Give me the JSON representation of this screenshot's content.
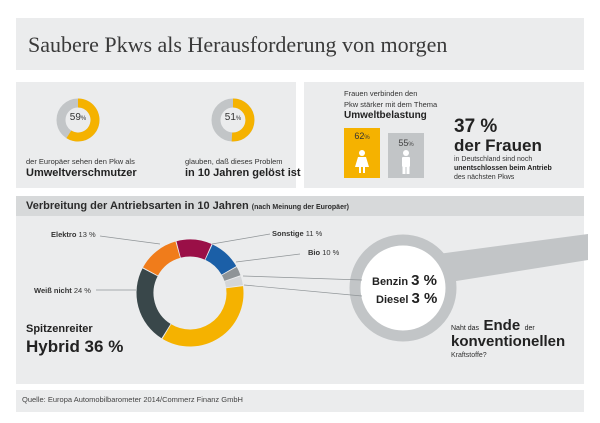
{
  "header": {
    "title": "Saubere Pkws als Herausforderung von morgen"
  },
  "stats": {
    "stat1": {
      "percent": "59",
      "unit": "%",
      "fraction": 0.59,
      "line1": "der Europäer sehen den Pkw als",
      "line2": "Umweltverschmutzer"
    },
    "stat2": {
      "percent": "51",
      "unit": "%",
      "fraction": 0.51,
      "line1": "glauben, daß dieses Problem",
      "line2": "in 10 Jahren gelöst ist"
    }
  },
  "women": {
    "intro1": "Frauen verbinden den",
    "intro2": "Pkw stärker mit dem Thema",
    "topic": "Umweltbelastung",
    "female_percent": "62",
    "male_percent": "55",
    "unit": "%",
    "big_value": "37 %",
    "big_label": "der Frauen",
    "desc1": "in Deutschland sind noch",
    "desc2": "unentschlossen beim Antrieb",
    "desc3": "des nächsten Pkws"
  },
  "section": {
    "title": "Verbreitung der Antriebsarten in 10 Jahren",
    "subtitle": "(nach Meinung der Europäer)"
  },
  "donut": {
    "labels": {
      "elektro": {
        "name": "Elektro",
        "value": "13 %"
      },
      "sonstige": {
        "name": "Sonstige",
        "value": "11 %"
      },
      "bio": {
        "name": "Bio",
        "value": "10 %"
      },
      "weiss": {
        "name": "Weiß nicht",
        "value": "24 %"
      }
    },
    "segments": [
      {
        "name": "Hybrid",
        "value": 36,
        "color": "#f5b200"
      },
      {
        "name": "Weiß nicht",
        "value": 24,
        "color": "#39474a"
      },
      {
        "name": "Elektro",
        "value": 13,
        "color": "#f07c1b"
      },
      {
        "name": "Sonstige",
        "value": 11,
        "color": "#9a0f47"
      },
      {
        "name": "Bio",
        "value": 10,
        "color": "#1b5fa7"
      },
      {
        "name": "Benzin",
        "value": 3,
        "color": "#8f9497"
      },
      {
        "name": "Diesel",
        "value": 3,
        "color": "#d4d6d8"
      }
    ],
    "leader_label": "Spitzenreiter",
    "leader_value": "Hybrid 36 %"
  },
  "magnifier": {
    "benzin_name": "Benzin",
    "benzin_value": "3 %",
    "diesel_name": "Diesel",
    "diesel_value": "3 %",
    "q1": "Naht das",
    "q2": "Ende",
    "q3": "der",
    "q4": "konventionellen",
    "q5": "Kraftstoffe?"
  },
  "footer": {
    "source": "Quelle: Europa Automobilbarometer 2014/Commerz Finanz GmbH"
  },
  "colors": {
    "accent": "#f5b200",
    "gray": "#c2c5c7",
    "panel": "#ebeced",
    "section_band": "#d7d9da"
  }
}
